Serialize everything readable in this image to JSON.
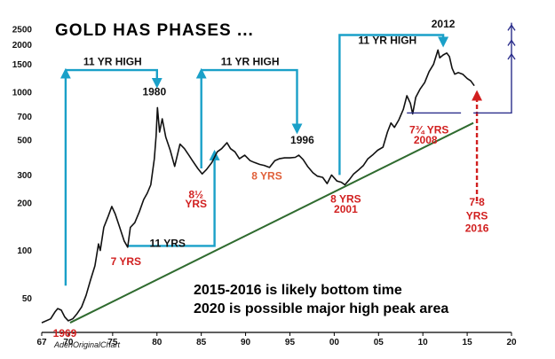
{
  "chart_data": {
    "type": "line",
    "title": "GOLD HAS PHASES ...",
    "xlabel": "",
    "ylabel": "",
    "y_scale": "log",
    "xlim": [
      1967,
      2020
    ],
    "ylim": [
      32,
      2500
    ],
    "x_ticks": [
      {
        "value": 1967,
        "label": "67"
      },
      {
        "value": 1970,
        "label": "70"
      },
      {
        "value": 1975,
        "label": "75"
      },
      {
        "value": 1980,
        "label": "80"
      },
      {
        "value": 1985,
        "label": "85"
      },
      {
        "value": 1990,
        "label": "90"
      },
      {
        "value": 1995,
        "label": "95"
      },
      {
        "value": 2000,
        "label": "00"
      },
      {
        "value": 2005,
        "label": "05"
      },
      {
        "value": 2010,
        "label": "10"
      },
      {
        "value": 2015,
        "label": "15"
      },
      {
        "value": 2020,
        "label": "20"
      }
    ],
    "y_ticks": [
      50,
      100,
      200,
      300,
      500,
      700,
      1000,
      1500,
      2000,
      2500
    ],
    "series": [
      {
        "color": "#111111",
        "points": [
          [
            1967.0,
            35
          ],
          [
            1968.0,
            37
          ],
          [
            1968.5,
            41
          ],
          [
            1968.8,
            43
          ],
          [
            1969.2,
            42
          ],
          [
            1969.6,
            38
          ],
          [
            1970.0,
            36
          ],
          [
            1970.5,
            37
          ],
          [
            1971.0,
            40
          ],
          [
            1971.5,
            44
          ],
          [
            1972.0,
            52
          ],
          [
            1972.5,
            65
          ],
          [
            1973.0,
            80
          ],
          [
            1973.4,
            110
          ],
          [
            1973.6,
            100
          ],
          [
            1974.0,
            140
          ],
          [
            1974.5,
            165
          ],
          [
            1974.9,
            190
          ],
          [
            1975.3,
            170
          ],
          [
            1975.8,
            140
          ],
          [
            1976.3,
            115
          ],
          [
            1976.7,
            105
          ],
          [
            1977.0,
            140
          ],
          [
            1977.5,
            150
          ],
          [
            1978.0,
            175
          ],
          [
            1978.5,
            210
          ],
          [
            1978.9,
            230
          ],
          [
            1979.3,
            260
          ],
          [
            1979.7,
            380
          ],
          [
            1979.9,
            530
          ],
          [
            1980.05,
            800
          ],
          [
            1980.3,
            560
          ],
          [
            1980.6,
            680
          ],
          [
            1981.0,
            520
          ],
          [
            1981.5,
            430
          ],
          [
            1982.0,
            340
          ],
          [
            1982.6,
            470
          ],
          [
            1983.1,
            440
          ],
          [
            1983.6,
            400
          ],
          [
            1984.0,
            370
          ],
          [
            1984.6,
            330
          ],
          [
            1985.1,
            305
          ],
          [
            1985.6,
            325
          ],
          [
            1986.2,
            360
          ],
          [
            1986.8,
            420
          ],
          [
            1987.3,
            440
          ],
          [
            1987.9,
            480
          ],
          [
            1988.3,
            440
          ],
          [
            1988.8,
            420
          ],
          [
            1989.3,
            380
          ],
          [
            1989.9,
            400
          ],
          [
            1990.5,
            370
          ],
          [
            1991.0,
            360
          ],
          [
            1991.6,
            350
          ],
          [
            1992.1,
            345
          ],
          [
            1992.7,
            335
          ],
          [
            1993.3,
            370
          ],
          [
            1993.8,
            380
          ],
          [
            1994.4,
            385
          ],
          [
            1995.0,
            385
          ],
          [
            1995.6,
            388
          ],
          [
            1996.0,
            400
          ],
          [
            1996.5,
            375
          ],
          [
            1997.0,
            340
          ],
          [
            1997.6,
            310
          ],
          [
            1998.1,
            295
          ],
          [
            1998.7,
            290
          ],
          [
            1999.2,
            265
          ],
          [
            1999.7,
            300
          ],
          [
            2000.3,
            275
          ],
          [
            2000.8,
            270
          ],
          [
            2001.2,
            260
          ],
          [
            2001.7,
            280
          ],
          [
            2002.2,
            305
          ],
          [
            2002.8,
            325
          ],
          [
            2003.3,
            345
          ],
          [
            2003.8,
            380
          ],
          [
            2004.4,
            405
          ],
          [
            2004.9,
            430
          ],
          [
            2005.5,
            450
          ],
          [
            2006.0,
            560
          ],
          [
            2006.4,
            640
          ],
          [
            2006.8,
            600
          ],
          [
            2007.3,
            670
          ],
          [
            2007.8,
            780
          ],
          [
            2008.2,
            950
          ],
          [
            2008.6,
            850
          ],
          [
            2008.85,
            730
          ],
          [
            2009.2,
            930
          ],
          [
            2009.7,
            1050
          ],
          [
            2010.2,
            1150
          ],
          [
            2010.7,
            1350
          ],
          [
            2011.2,
            1500
          ],
          [
            2011.7,
            1850
          ],
          [
            2011.9,
            1650
          ],
          [
            2012.3,
            1720
          ],
          [
            2012.7,
            1770
          ],
          [
            2013.0,
            1680
          ],
          [
            2013.3,
            1420
          ],
          [
            2013.6,
            1300
          ],
          [
            2014.0,
            1330
          ],
          [
            2014.5,
            1300
          ],
          [
            2015.0,
            1220
          ],
          [
            2015.4,
            1180
          ],
          [
            2015.8,
            1100
          ]
        ]
      }
    ],
    "annotations": [
      {
        "text": "11 YR HIGH",
        "x": 1975.0,
        "y": 1560,
        "color": "#111111"
      },
      {
        "text": "11 YR HIGH",
        "x": 1990.5,
        "y": 1560,
        "color": "#111111"
      },
      {
        "text": "11 YR HIGH",
        "x": 2006.0,
        "y": 2130,
        "color": "#111111"
      },
      {
        "text": "1980",
        "x": 1979.7,
        "y": 1010,
        "color": "#111111"
      },
      {
        "text": "1996",
        "x": 1996.4,
        "y": 500,
        "color": "#111111"
      },
      {
        "text": "2012",
        "x": 2012.3,
        "y": 2700,
        "color": "#111111"
      },
      {
        "text": "11 YRS",
        "x": 1981.2,
        "y": 111,
        "color": "#111111"
      },
      {
        "text": "7 YRS",
        "x": 1976.5,
        "y": 85,
        "color": "#d11f1f"
      },
      {
        "text": "8½",
        "x": 1984.4,
        "y": 225,
        "color": "#d11f1f"
      },
      {
        "text": "YRS",
        "x": 1984.4,
        "y": 197,
        "color": "#d11f1f"
      },
      {
        "text": "8 YRS",
        "x": 1992.4,
        "y": 295,
        "color": "#e0603a"
      },
      {
        "text": "8 YRS",
        "x": 2001.3,
        "y": 212,
        "color": "#d11f1f"
      },
      {
        "text": "2001",
        "x": 2001.3,
        "y": 183,
        "color": "#d11f1f"
      },
      {
        "text": "7¾ YRS",
        "x": 2010.7,
        "y": 580,
        "color": "#d11f1f"
      },
      {
        "text": "2008",
        "x": 2010.3,
        "y": 500,
        "color": "#d11f1f"
      },
      {
        "text": "7-8",
        "x": 2016.1,
        "y": 202,
        "color": "#d11f1f"
      },
      {
        "text": "YRS",
        "x": 2016.1,
        "y": 166,
        "color": "#d11f1f"
      },
      {
        "text": "2016",
        "x": 2016.1,
        "y": 138,
        "color": "#d11f1f"
      },
      {
        "text": "1969",
        "x": 1969.6,
        "y": 30,
        "color": "#d11f1f"
      }
    ],
    "footnotes": [
      "2015-2016 is likely bottom time",
      "2020 is possible major high peak area"
    ],
    "credit": "AdenOriginalChart",
    "colors": {
      "price_line": "#111111",
      "trend_line": "#2f6b2f",
      "arrow_blue": "#1aa0c8",
      "forecast_navy": "#2c2f8c",
      "forecast_red": "#d11f1f"
    }
  }
}
